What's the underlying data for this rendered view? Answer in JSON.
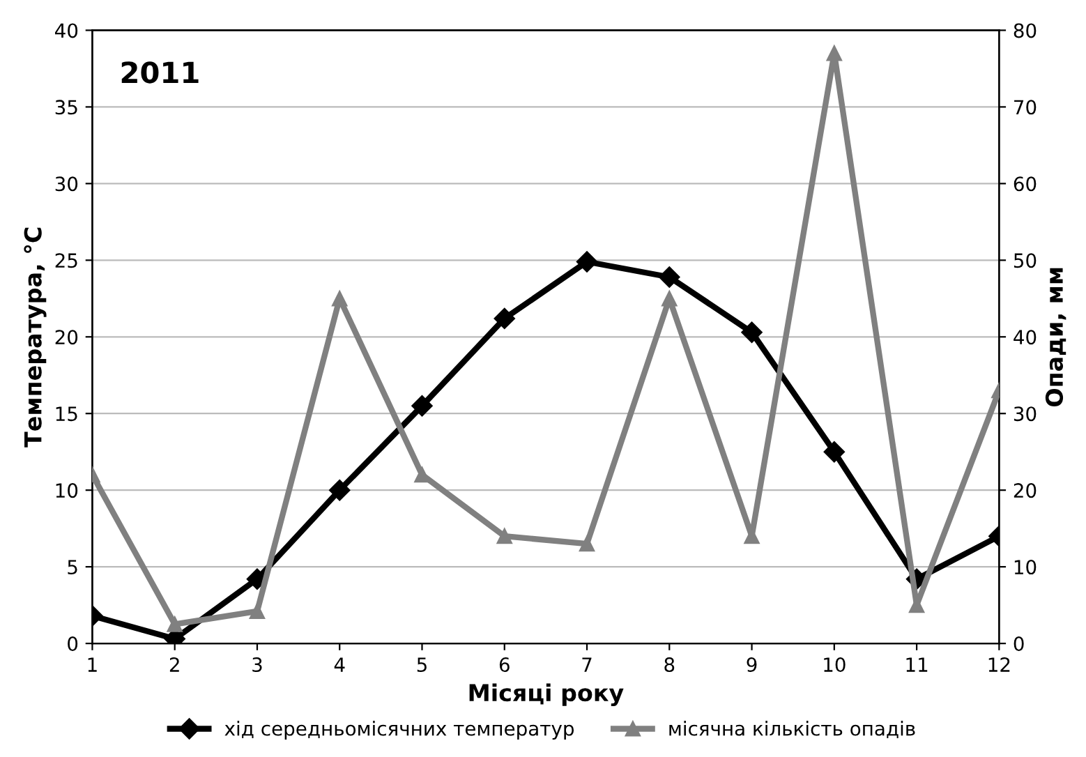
{
  "chart_data": {
    "type": "line",
    "x": [
      1,
      2,
      3,
      4,
      5,
      6,
      7,
      8,
      9,
      10,
      11,
      12
    ],
    "xlabel": "Місяці року",
    "ylabel": "Температура, °С",
    "y2label": "Опади, мм",
    "annotations": [
      "2011"
    ],
    "xlim": [
      1,
      12
    ],
    "xticks": [
      1,
      2,
      3,
      4,
      5,
      6,
      7,
      8,
      9,
      10,
      11,
      12
    ],
    "ylim": [
      0,
      40
    ],
    "yticks": [
      0,
      5,
      10,
      15,
      20,
      25,
      30,
      35,
      40
    ],
    "y2lim": [
      0,
      80
    ],
    "y2ticks": [
      0,
      10,
      20,
      30,
      40,
      50,
      60,
      70,
      80
    ],
    "grid": "y",
    "legend": "bottom",
    "line_style": "solid",
    "series": [
      {
        "name": "хід середньомісячних температур",
        "color": "#000000",
        "marker": "diamond",
        "values": [
          1.8,
          0.3,
          4.2,
          10.0,
          15.5,
          21.2,
          24.9,
          23.9,
          20.3,
          12.5,
          4.2,
          7.0
        ]
      },
      {
        "name": "місячна кількість опадів",
        "color": "#808080",
        "marker": "triangle",
        "axis": "y2",
        "values": [
          22,
          2.5,
          4.2,
          45,
          22,
          14,
          13,
          45,
          14,
          77,
          5,
          33
        ]
      }
    ]
  }
}
